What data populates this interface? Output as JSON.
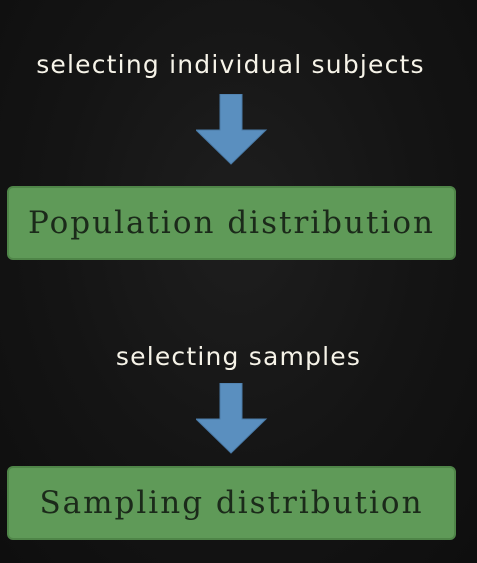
{
  "flow": {
    "steps": [
      {
        "action": "selecting individual subjects",
        "result": "Population distribution"
      },
      {
        "action": "selecting samples",
        "result": "Sampling distribution"
      }
    ]
  },
  "colors": {
    "background": "#141414",
    "box_fill": "#5f9a58",
    "arrow": "#5a8fbf",
    "label_text": "#f6f3e8",
    "box_text": "#1b2a1a"
  }
}
